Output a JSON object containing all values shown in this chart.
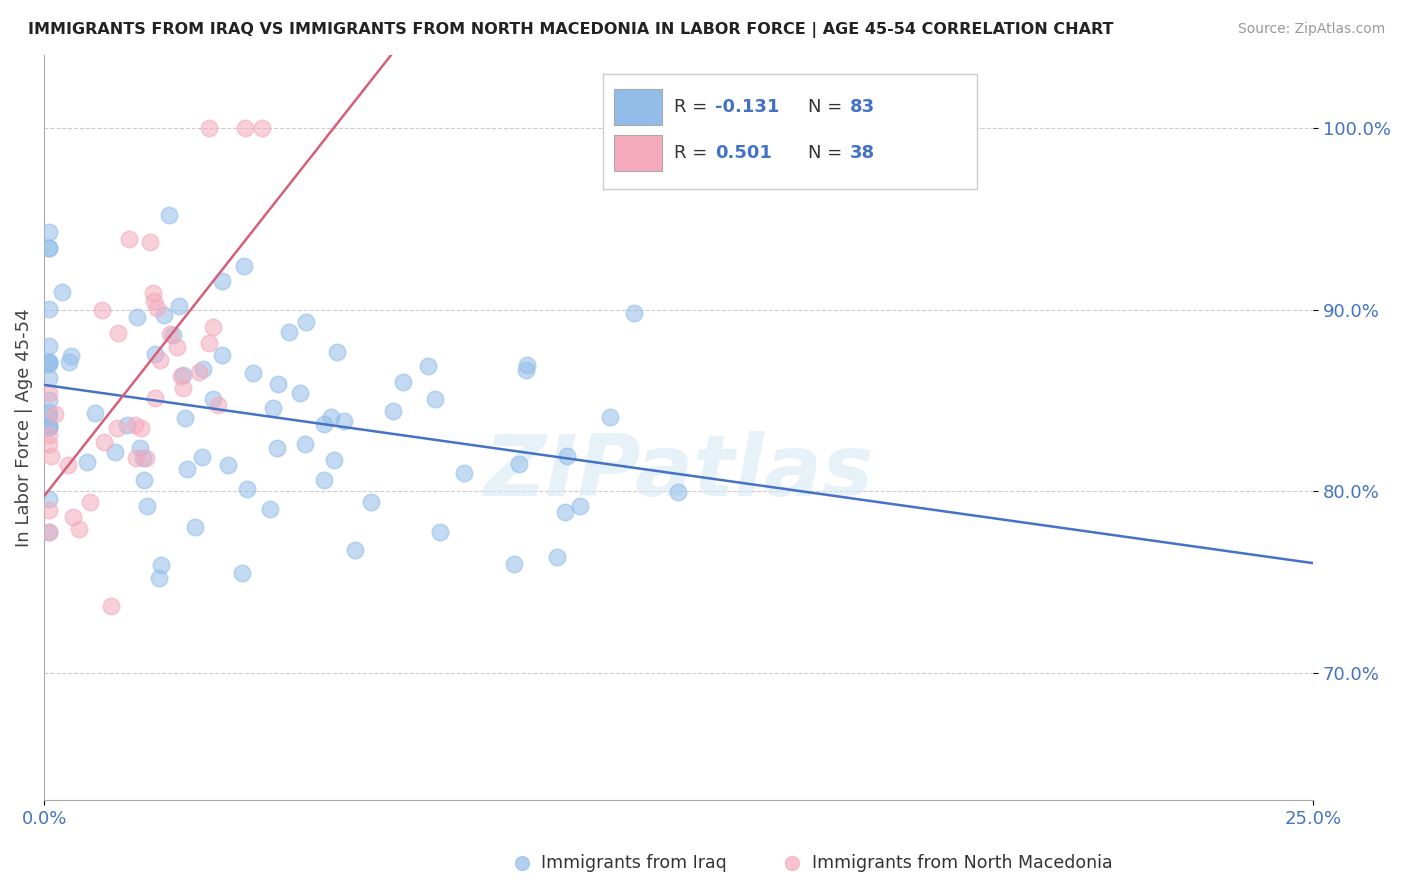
{
  "title": "IMMIGRANTS FROM IRAQ VS IMMIGRANTS FROM NORTH MACEDONIA IN LABOR FORCE | AGE 45-54 CORRELATION CHART",
  "source": "Source: ZipAtlas.com",
  "ylabel": "In Labor Force | Age 45-54",
  "y_ticks": [
    0.7,
    0.8,
    0.9,
    1.0
  ],
  "y_tick_labels": [
    "70.0%",
    "80.0%",
    "90.0%",
    "100.0%"
  ],
  "x_lim": [
    0.0,
    0.25
  ],
  "y_lim": [
    0.63,
    1.04
  ],
  "iraq_color": "#92BDE8",
  "iraq_edge_color": "#92BDE8",
  "iraq_line_color": "#4472C4",
  "macedonia_color": "#F4AABC",
  "macedonia_edge_color": "#F4AABC",
  "macedonia_line_color": "#D4607A",
  "iraq_R": "-0.131",
  "iraq_N": "83",
  "macedonia_R": "0.501",
  "macedonia_N": "38",
  "tick_color": "#4472C4",
  "watermark": "ZIPatlas",
  "legend_label_iraq": "Immigrants from Iraq",
  "legend_label_mac": "Immigrants from North Macedonia",
  "grid_color": "#cccccc",
  "spine_color": "#aaaaaa"
}
